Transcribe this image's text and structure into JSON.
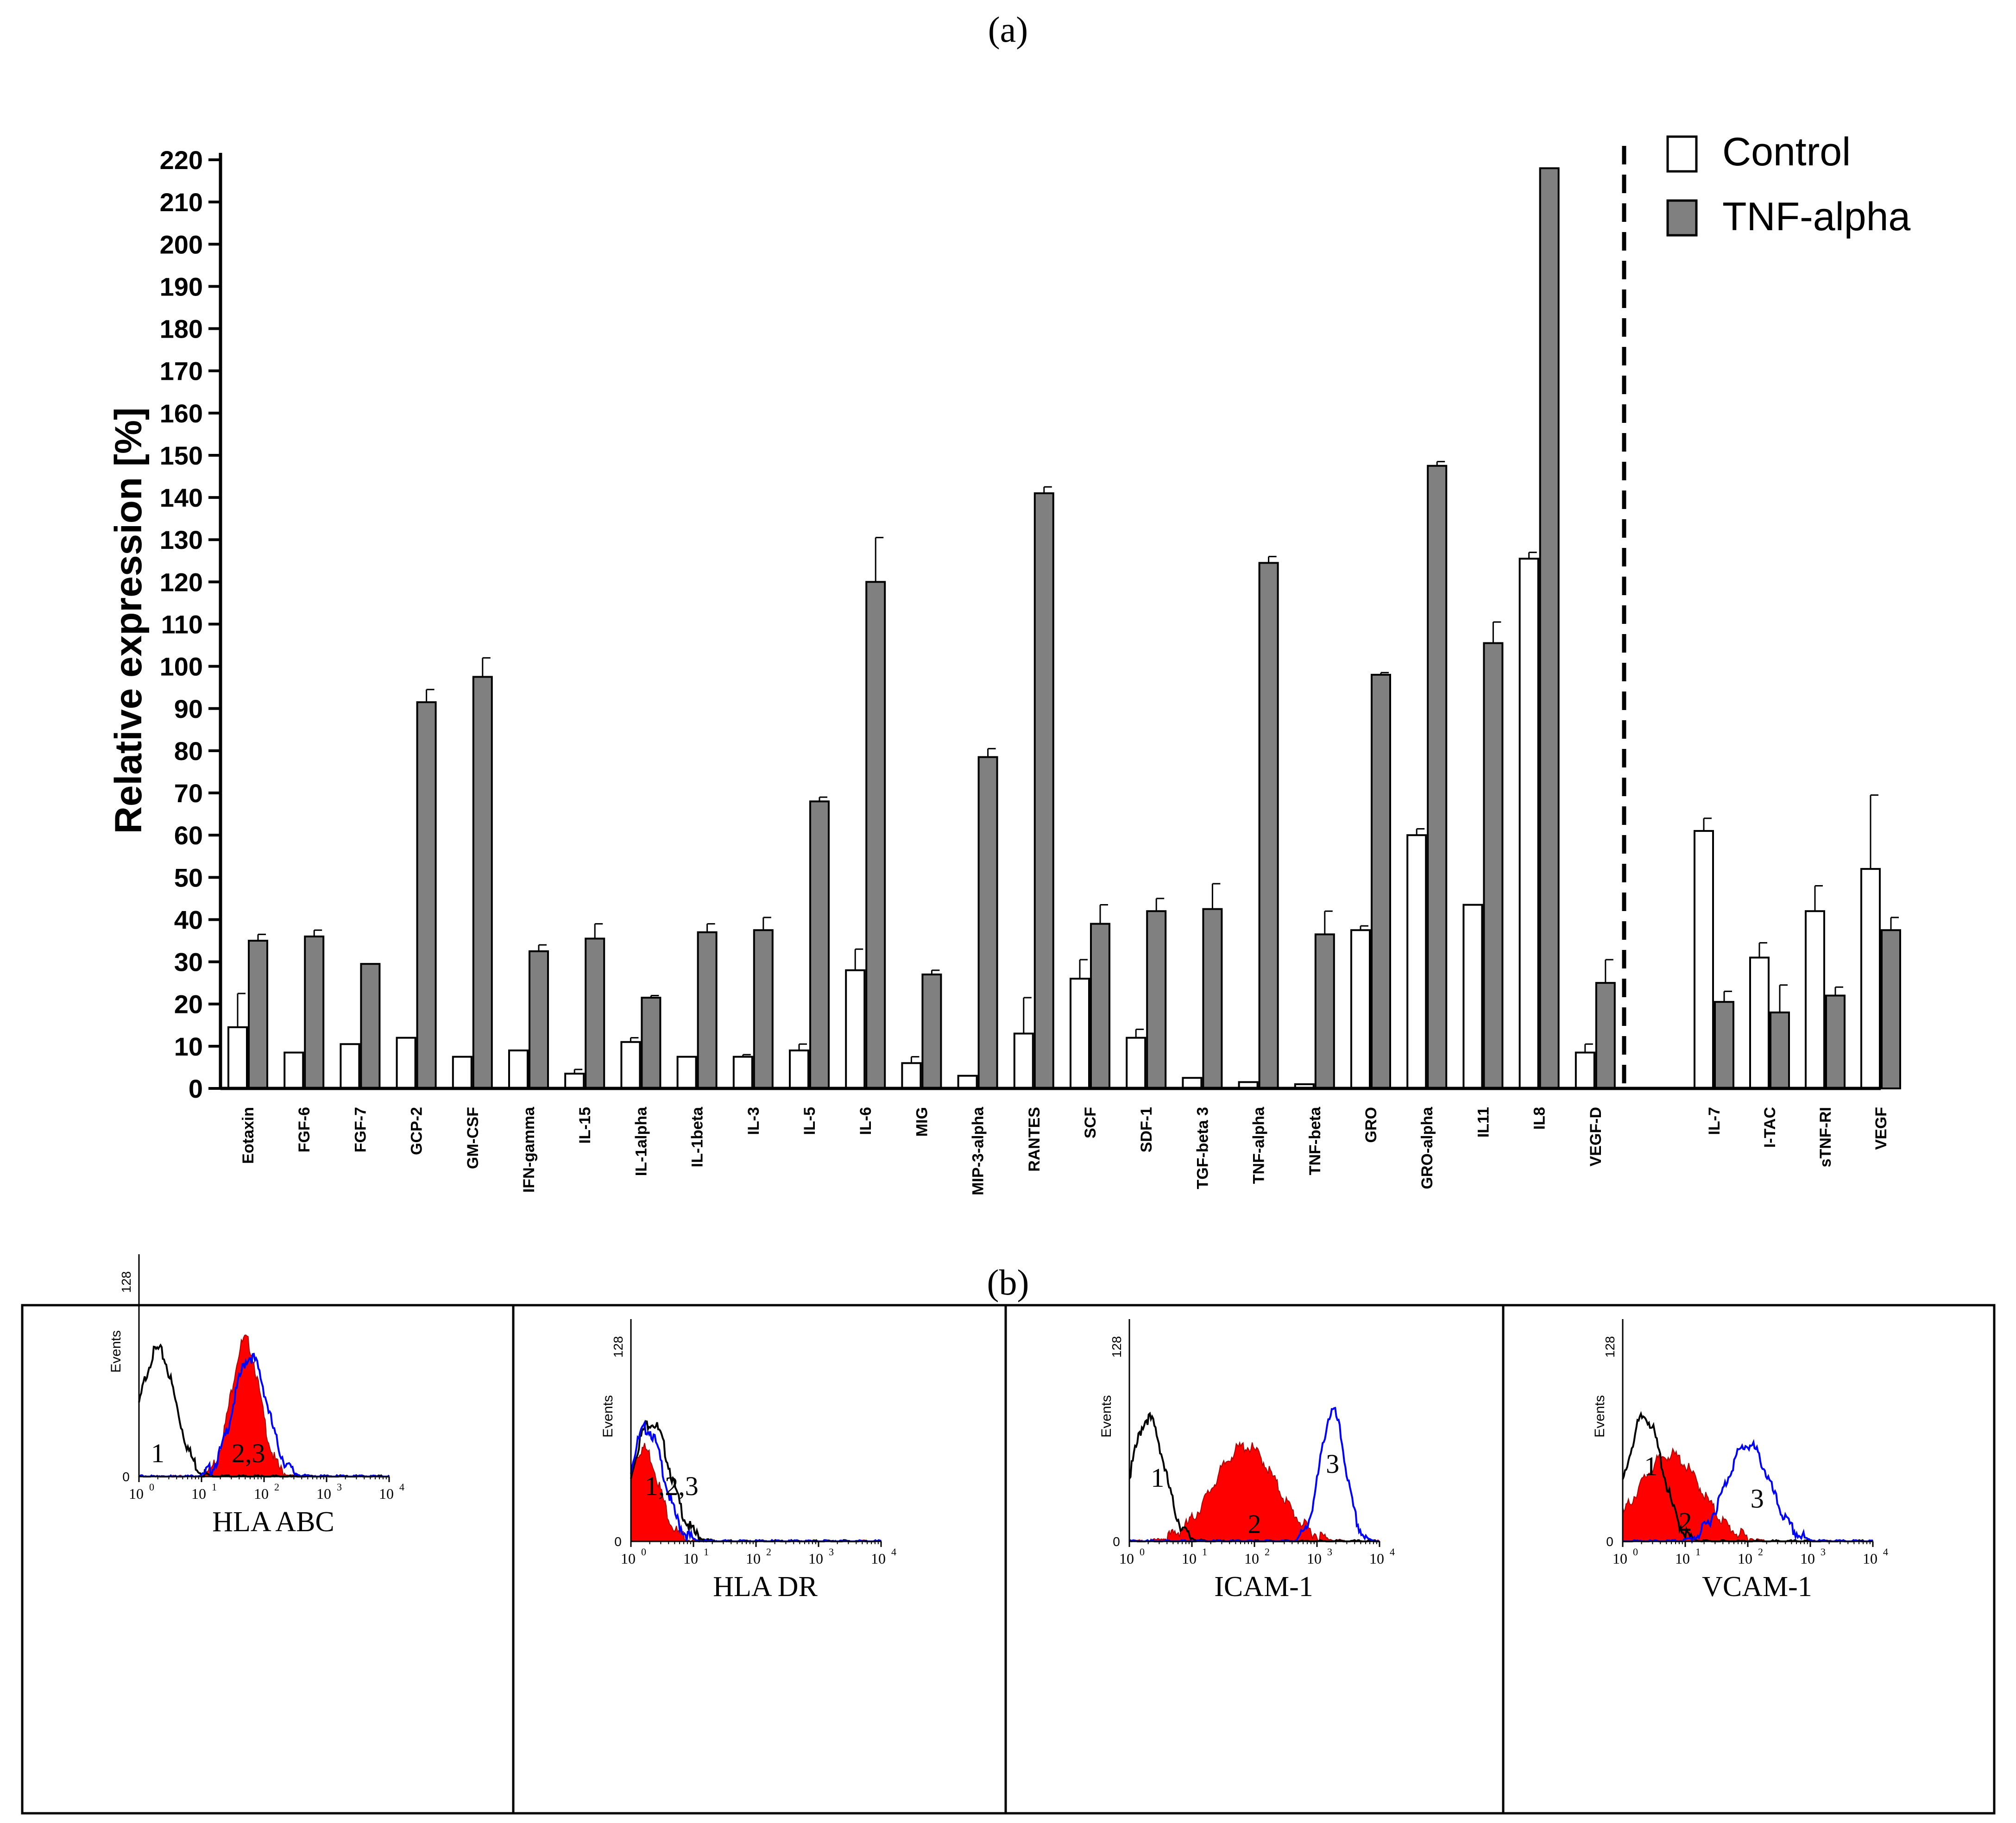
{
  "panel_a_label": "(a)",
  "panel_b_label": "(b)",
  "chart_data": [
    {
      "type": "bar",
      "ylabel": "Relative expression [%]",
      "ylim": [
        0,
        220
      ],
      "yticks": [
        0,
        10,
        20,
        30,
        40,
        50,
        60,
        70,
        80,
        90,
        100,
        110,
        120,
        130,
        140,
        150,
        160,
        170,
        180,
        190,
        200,
        210,
        220
      ],
      "legend": {
        "position": "top-right",
        "entries": [
          "Control",
          "TNF-alpha"
        ]
      },
      "colors": {
        "control": "#ffffff",
        "tnf": "#808080",
        "outline": "#000000"
      },
      "categories": [
        "Eotaxin",
        "FGF-6",
        "FGF-7",
        "GCP-2",
        "GM-CSF",
        "IFN-gamma",
        "IL-15",
        "IL-1alpha",
        "IL-1beta",
        "IL-3",
        "IL-5",
        "IL-6",
        "MIG",
        "MIP-3-alpha",
        "RANTES",
        "SCF",
        "SDF-1",
        "TGF-beta 3",
        "TNF-alpha",
        "TNF-beta",
        "GRO",
        "GRO-alpha",
        "IL11",
        "IL8",
        "VEGF-D",
        "IL-7",
        "I-TAC",
        "sTNF-RI",
        "VEGF"
      ],
      "group_split_after": "VEGF-D",
      "series": [
        {
          "name": "Control",
          "values": [
            14.5,
            8.5,
            10.5,
            12,
            7.5,
            9,
            3.5,
            11,
            7.5,
            7.5,
            9,
            28,
            6,
            3,
            13,
            26,
            12,
            2.5,
            1.5,
            1,
            37.5,
            60,
            43.5,
            125.5,
            8.5,
            61,
            31,
            42,
            52
          ],
          "errors": [
            8,
            0,
            0,
            0,
            0,
            0,
            1,
            1,
            0,
            0.5,
            1.5,
            5,
            1.5,
            0,
            8.5,
            4.5,
            2,
            0,
            0,
            0,
            1,
            1.5,
            0,
            1.5,
            2,
            3,
            3.5,
            6,
            17.5
          ]
        },
        {
          "name": "TNF-alpha",
          "values": [
            35,
            36,
            29.5,
            91.5,
            97.5,
            32.5,
            35.5,
            21.5,
            37,
            37.5,
            68,
            120,
            27,
            78.5,
            141,
            39,
            42,
            42.5,
            124.5,
            36.5,
            98,
            147.5,
            105.5,
            218,
            25,
            20.5,
            18,
            22,
            37.5
          ],
          "errors": [
            1.5,
            1.5,
            0,
            3,
            4.5,
            1.5,
            3.5,
            0.5,
            2,
            3,
            1,
            10.5,
            1,
            2,
            1.5,
            4.5,
            3,
            6,
            1.5,
            5.5,
            0.5,
            1,
            5,
            0,
            5.5,
            2.5,
            6.5,
            2,
            3
          ]
        }
      ]
    },
    {
      "type": "histogram",
      "title": "HLA ABC",
      "ylabel": "Events",
      "ylim": [
        0,
        128
      ],
      "ytick_labels": [
        "0",
        "128"
      ],
      "xscale": "log",
      "xtick_base": "10",
      "xtick_exponents": [
        "0",
        "1",
        "2",
        "3",
        "4"
      ],
      "peak_labels": [
        "1",
        "2,3"
      ],
      "peaks": [
        {
          "id": "1",
          "center_log": 0.3,
          "width": 0.28,
          "height": 76,
          "style": "black-line"
        },
        {
          "id": "2",
          "center_log": 1.7,
          "width": 0.23,
          "height": 82,
          "style": "red-fill"
        },
        {
          "id": "3",
          "center_log": 1.78,
          "width": 0.27,
          "height": 72,
          "style": "blue-line"
        }
      ]
    },
    {
      "type": "histogram",
      "title": "HLA DR",
      "ylabel": "Events",
      "ylim": [
        0,
        128
      ],
      "ytick_labels": [
        "0",
        "128"
      ],
      "xscale": "log",
      "xtick_base": "10",
      "xtick_exponents": [
        "0",
        "1",
        "2",
        "3",
        "4"
      ],
      "peak_labels": [
        "1,2,3"
      ],
      "peaks": [
        {
          "id": "1",
          "center_log": 0.32,
          "width": 0.3,
          "height": 72,
          "style": "black-line"
        },
        {
          "id": "2",
          "center_log": 0.2,
          "width": 0.25,
          "height": 56,
          "style": "red-fill"
        },
        {
          "id": "3",
          "center_log": 0.25,
          "width": 0.27,
          "height": 68,
          "style": "blue-line"
        }
      ]
    },
    {
      "type": "histogram",
      "title": "ICAM-1",
      "ylabel": "Events",
      "ylim": [
        0,
        128
      ],
      "ytick_labels": [
        "0",
        "128"
      ],
      "xscale": "log",
      "xtick_base": "10",
      "xtick_exponents": [
        "0",
        "1",
        "2",
        "3",
        "4"
      ],
      "peak_labels": [
        "1",
        "2",
        "3"
      ],
      "peaks": [
        {
          "id": "1",
          "center_log": 0.3,
          "width": 0.26,
          "height": 74,
          "style": "black-line"
        },
        {
          "id": "2",
          "center_log": 1.85,
          "width": 0.5,
          "height": 57,
          "style": "red-fill"
        },
        {
          "id": "3",
          "center_log": 3.25,
          "width": 0.2,
          "height": 78,
          "style": "blue-line"
        }
      ]
    },
    {
      "type": "histogram",
      "title": "VCAM-1",
      "ylabel": "Events",
      "ylim": [
        0,
        128
      ],
      "ytick_labels": [
        "0",
        "128"
      ],
      "xscale": "log",
      "xtick_base": "10",
      "xtick_exponents": [
        "0",
        "1",
        "2",
        "3",
        "4"
      ],
      "peak_labels": [
        "1",
        "2",
        "3"
      ],
      "peaks": [
        {
          "id": "1",
          "center_log": 0.35,
          "width": 0.28,
          "height": 75,
          "style": "black-line"
        },
        {
          "id": "2",
          "center_log": 0.75,
          "width": 0.5,
          "height": 52,
          "style": "red-fill"
        },
        {
          "id": "3",
          "center_log": 2.0,
          "width": 0.35,
          "height": 58,
          "style": "blue-line"
        }
      ]
    }
  ]
}
